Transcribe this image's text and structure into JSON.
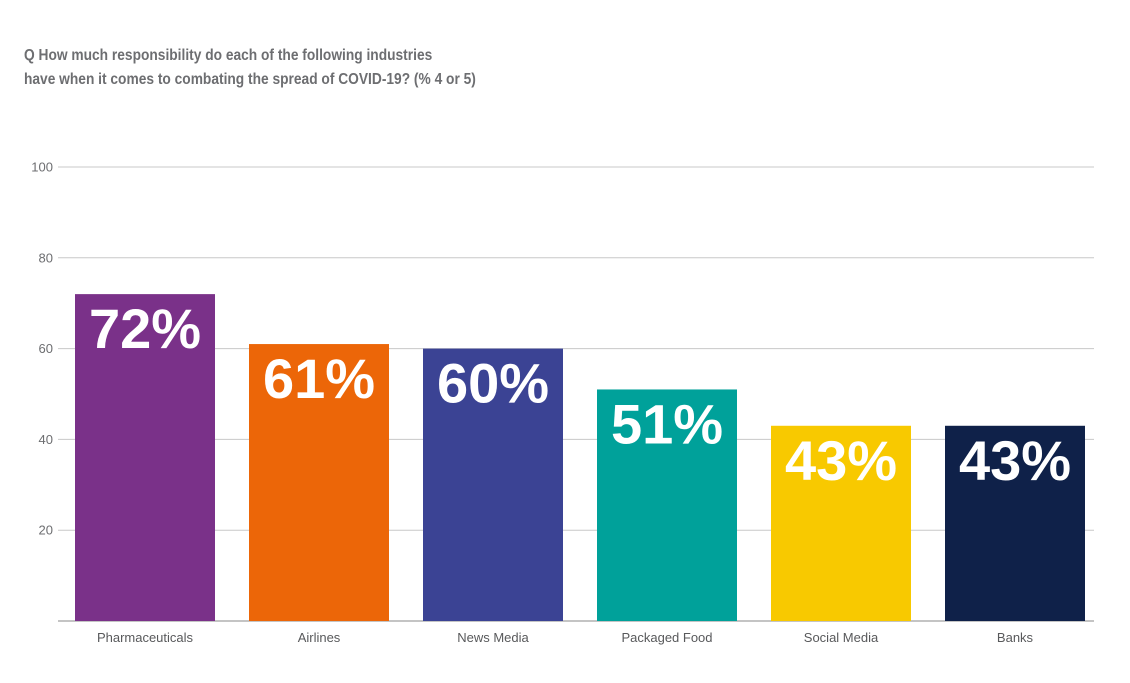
{
  "title_lines": [
    "Q How much responsibility do each of the following industries",
    "have when it comes to combating the spread of COVID-19? (% 4 or 5)"
  ],
  "chart_data": {
    "type": "bar",
    "categories": [
      "Pharmaceuticals",
      "Airlines",
      "News Media",
      "Packaged Food",
      "Social Media",
      "Banks"
    ],
    "values": [
      72,
      61,
      60,
      51,
      43,
      43
    ],
    "data_labels": [
      "72%",
      "61%",
      "60%",
      "51%",
      "43%",
      "43%"
    ],
    "colors": [
      "#7a3189",
      "#ec6608",
      "#3b4394",
      "#00a19a",
      "#f8c900",
      "#0f2149"
    ],
    "yticks": [
      20,
      40,
      60,
      80,
      100
    ],
    "ylim": [
      0,
      100
    ],
    "grid": true,
    "title": "Q How much responsibility do each of the following industries have when it comes to combating the spread of COVID-19? (% 4 or 5)",
    "xlabel": "",
    "ylabel": ""
  },
  "colors": {
    "grid": "#c8c8c8",
    "axis": "#8a8a8a",
    "text": "#6d6e71"
  }
}
